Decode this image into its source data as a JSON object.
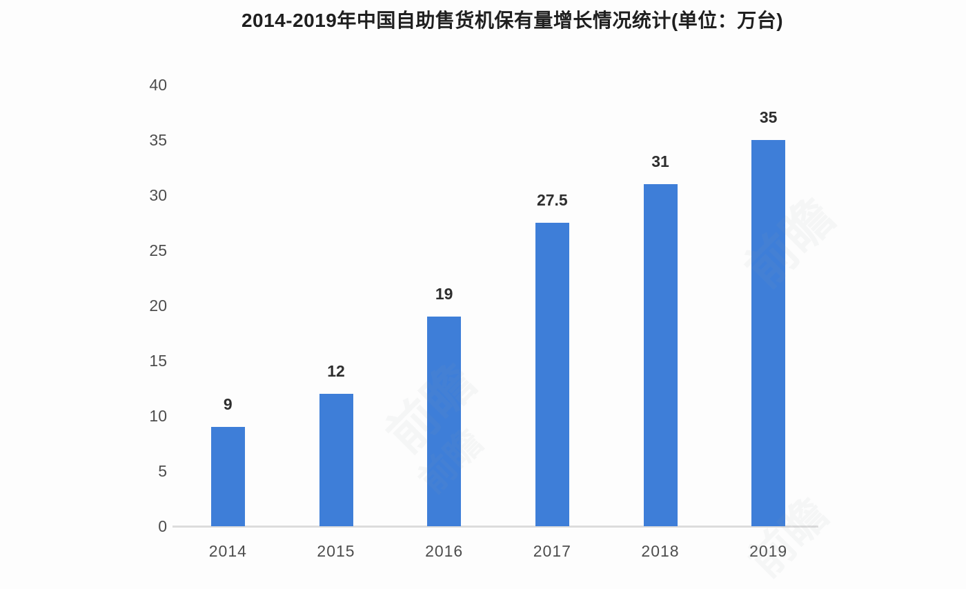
{
  "page": {
    "background": "#fdfdfd"
  },
  "chart_data": {
    "type": "bar",
    "title": "2014-2019年中国自助售货机保有量增长情况统计(单位：万台)",
    "categories": [
      "2014",
      "2015",
      "2016",
      "2017",
      "2018",
      "2019"
    ],
    "values": [
      9,
      12,
      19,
      27.5,
      31,
      35
    ],
    "value_labels": [
      "9",
      "12",
      "19",
      "27.5",
      "31",
      "35"
    ],
    "xlabel": "",
    "ylabel": "",
    "ylim": [
      0,
      40
    ],
    "yticks": [
      0,
      5,
      10,
      15,
      20,
      25,
      30,
      35,
      40
    ],
    "grid": false,
    "legend": "none",
    "bar_color": "#3e7ed8",
    "axis_line_color": "#dcdcdc",
    "tick_label_color": "#4d4d4d",
    "value_label_color": "#2e2e2e",
    "title_color": "#1f1f1f"
  },
  "watermark": {
    "text": "前瞻",
    "color": "#9aa0a8"
  }
}
